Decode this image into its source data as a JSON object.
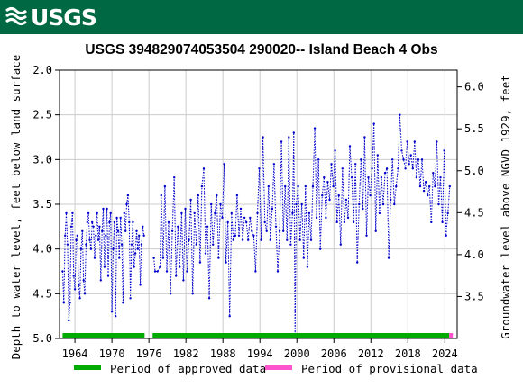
{
  "header": {
    "logo_text": "USGS",
    "bg_color": "#006843"
  },
  "chart_data": {
    "type": "line",
    "title": "USGS 394829074053504 290020-- Island Beach 4 Obs",
    "ylabel": "Depth to water level, feet below land surface",
    "y2label": "Groundwater level above NGVD 1929, feet",
    "xlim": [
      1961.5,
      2026.0
    ],
    "ylim": [
      5.0,
      2.0
    ],
    "y2lim": [
      3.0,
      6.2
    ],
    "y_inverted": true,
    "x_ticks": [
      1964,
      1970,
      1976,
      1982,
      1988,
      1994,
      2000,
      2006,
      2012,
      2018,
      2024
    ],
    "y_ticks": [
      2.0,
      2.5,
      3.0,
      3.5,
      4.0,
      4.5,
      5.0
    ],
    "y_tick_labels": [
      "2.0",
      "2.5",
      "3.0",
      "3.5",
      "4.0",
      "4.5",
      "5.0"
    ],
    "y2_ticks": [
      3.5,
      4.0,
      4.5,
      5.0,
      5.5,
      6.0
    ],
    "y2_tick_labels": [
      "3.5",
      "4.0",
      "4.5",
      "5.0",
      "5.5",
      "6.0"
    ],
    "grid": true,
    "series_color": "#0000cc",
    "approved_color": "#00aa00",
    "provisional_color": "#ff55cc",
    "series": [
      {
        "segments": [
          [
            [
              1962.0,
              4.25
            ],
            [
              1962.2,
              4.6
            ],
            [
              1962.4,
              3.85
            ],
            [
              1962.6,
              3.6
            ],
            [
              1962.8,
              3.95
            ],
            [
              1963.0,
              4.8
            ],
            [
              1963.2,
              4.6
            ],
            [
              1963.4,
              3.75
            ],
            [
              1963.6,
              3.6
            ],
            [
              1963.8,
              4.3
            ],
            [
              1964.0,
              4.45
            ],
            [
              1964.2,
              3.9
            ],
            [
              1964.4,
              3.85
            ],
            [
              1964.6,
              4.4
            ],
            [
              1964.8,
              4.55
            ],
            [
              1965.0,
              4.0
            ],
            [
              1965.2,
              3.8
            ],
            [
              1965.4,
              4.35
            ],
            [
              1965.6,
              4.5
            ],
            [
              1965.8,
              3.95
            ],
            [
              1966.0,
              3.7
            ],
            [
              1966.2,
              3.6
            ],
            [
              1966.4,
              3.9
            ],
            [
              1966.6,
              4.0
            ],
            [
              1966.8,
              3.7
            ],
            [
              1967.0,
              3.75
            ],
            [
              1967.2,
              4.1
            ],
            [
              1967.4,
              3.85
            ],
            [
              1967.6,
              3.6
            ],
            [
              1967.8,
              3.9
            ],
            [
              1968.0,
              3.75
            ],
            [
              1968.2,
              4.35
            ],
            [
              1968.4,
              3.8
            ],
            [
              1968.6,
              3.55
            ],
            [
              1968.8,
              4.2
            ],
            [
              1969.0,
              3.85
            ],
            [
              1969.2,
              3.55
            ],
            [
              1969.4,
              4.3
            ],
            [
              1969.6,
              3.7
            ],
            [
              1969.8,
              3.6
            ],
            [
              1970.0,
              4.7
            ],
            [
              1970.2,
              4.0
            ],
            [
              1970.4,
              3.7
            ],
            [
              1970.6,
              4.75
            ],
            [
              1970.8,
              3.65
            ],
            [
              1971.0,
              3.8
            ],
            [
              1971.2,
              4.1
            ],
            [
              1971.4,
              3.65
            ],
            [
              1971.6,
              3.95
            ],
            [
              1971.8,
              4.6
            ],
            [
              1972.0,
              3.6
            ],
            [
              1972.2,
              3.8
            ],
            [
              1972.4,
              3.5
            ],
            [
              1972.6,
              3.4
            ],
            [
              1972.8,
              3.7
            ],
            [
              1973.0,
              4.55
            ],
            [
              1973.2,
              3.95
            ],
            [
              1973.4,
              3.7
            ],
            [
              1973.6,
              4.2
            ],
            [
              1973.8,
              4.05
            ],
            [
              1974.0,
              3.8
            ],
            [
              1974.2,
              4.0
            ],
            [
              1974.4,
              3.85
            ],
            [
              1974.6,
              4.4
            ],
            [
              1974.8,
              3.95
            ],
            [
              1975.0,
              3.75
            ],
            [
              1975.2,
              3.85
            ]
          ],
          [
            [
              1976.8,
              4.1
            ],
            [
              1977.0,
              4.25
            ],
            [
              1977.4,
              4.25
            ],
            [
              1977.8,
              4.2
            ],
            [
              1978.0,
              3.4
            ],
            [
              1978.3,
              4.1
            ],
            [
              1978.6,
              3.3
            ],
            [
              1978.9,
              4.25
            ],
            [
              1979.2,
              3.7
            ],
            [
              1979.5,
              4.5
            ],
            [
              1979.8,
              3.8
            ],
            [
              1980.1,
              3.2
            ],
            [
              1980.4,
              4.3
            ],
            [
              1980.7,
              3.75
            ],
            [
              1981.0,
              4.2
            ],
            [
              1981.3,
              3.6
            ],
            [
              1981.6,
              4.35
            ],
            [
              1981.9,
              3.55
            ],
            [
              1982.2,
              4.25
            ],
            [
              1982.5,
              3.9
            ],
            [
              1982.8,
              3.45
            ],
            [
              1983.1,
              4.5
            ],
            [
              1983.4,
              3.6
            ],
            [
              1983.7,
              3.95
            ],
            [
              1984.0,
              3.4
            ],
            [
              1984.3,
              4.15
            ],
            [
              1984.6,
              3.3
            ],
            [
              1984.9,
              3.1
            ],
            [
              1985.2,
              4.05
            ],
            [
              1985.5,
              3.75
            ],
            [
              1985.8,
              4.55
            ],
            [
              1986.1,
              3.5
            ],
            [
              1986.4,
              3.95
            ],
            [
              1986.7,
              3.6
            ],
            [
              1987.0,
              3.4
            ],
            [
              1987.3,
              4.1
            ],
            [
              1987.6,
              3.5
            ],
            [
              1987.9,
              3.65
            ],
            [
              1988.2,
              3.05
            ],
            [
              1988.5,
              4.15
            ],
            [
              1988.8,
              3.7
            ],
            [
              1989.1,
              4.75
            ],
            [
              1989.4,
              3.6
            ],
            [
              1989.7,
              3.9
            ],
            [
              1990.0,
              3.85
            ],
            [
              1990.3,
              3.4
            ],
            [
              1990.6,
              3.85
            ],
            [
              1990.9,
              3.55
            ],
            [
              1991.2,
              3.9
            ],
            [
              1991.5,
              3.65
            ],
            [
              1991.8,
              3.7
            ],
            [
              1992.1,
              3.9
            ],
            [
              1992.4,
              3.65
            ],
            [
              1992.7,
              3.8
            ],
            [
              1993.0,
              3.85
            ],
            [
              1993.3,
              4.25
            ],
            [
              1993.6,
              3.6
            ],
            [
              1993.9,
              3.1
            ],
            [
              1994.2,
              3.9
            ],
            [
              1994.5,
              2.75
            ],
            [
              1994.8,
              3.7
            ],
            [
              1995.1,
              3.8
            ],
            [
              1995.4,
              3.3
            ],
            [
              1995.7,
              3.9
            ],
            [
              1996.0,
              3.55
            ],
            [
              1996.3,
              3.05
            ],
            [
              1996.6,
              3.75
            ],
            [
              1996.9,
              4.25
            ],
            [
              1997.2,
              3.8
            ],
            [
              1997.5,
              2.8
            ],
            [
              1997.8,
              3.8
            ],
            [
              1998.1,
              3.3
            ],
            [
              1998.4,
              3.9
            ],
            [
              1998.7,
              2.75
            ],
            [
              1999.0,
              3.95
            ],
            [
              1999.3,
              3.6
            ],
            [
              1999.5,
              2.7
            ],
            [
              1999.7,
              4.95
            ],
            [
              1999.9,
              3.5
            ],
            [
              2000.2,
              3.3
            ],
            [
              2000.5,
              3.9
            ],
            [
              2000.8,
              3.5
            ],
            [
              2001.1,
              4.1
            ],
            [
              2001.4,
              3.3
            ],
            [
              2001.7,
              4.2
            ],
            [
              2002.0,
              3.6
            ],
            [
              2002.3,
              3.9
            ],
            [
              2002.6,
              3.3
            ],
            [
              2002.9,
              2.65
            ],
            [
              2003.2,
              3.65
            ],
            [
              2003.5,
              3.0
            ],
            [
              2003.8,
              4.0
            ],
            [
              2004.1,
              3.4
            ],
            [
              2004.4,
              3.2
            ],
            [
              2004.7,
              3.65
            ],
            [
              2005.0,
              3.25
            ],
            [
              2005.3,
              3.45
            ],
            [
              2005.6,
              3.05
            ],
            [
              2005.9,
              3.3
            ],
            [
              2006.2,
              2.9
            ],
            [
              2006.5,
              3.7
            ],
            [
              2006.8,
              3.4
            ],
            [
              2007.1,
              3.95
            ],
            [
              2007.4,
              3.1
            ],
            [
              2007.7,
              3.7
            ],
            [
              2008.0,
              3.45
            ],
            [
              2008.3,
              3.65
            ],
            [
              2008.6,
              2.85
            ],
            [
              2008.9,
              3.2
            ],
            [
              2009.2,
              3.7
            ],
            [
              2009.5,
              3.05
            ],
            [
              2009.8,
              4.15
            ],
            [
              2010.1,
              3.5
            ],
            [
              2010.4,
              3.0
            ],
            [
              2010.7,
              3.55
            ],
            [
              2011.0,
              2.75
            ],
            [
              2011.3,
              3.85
            ],
            [
              2011.6,
              3.2
            ],
            [
              2011.9,
              3.4
            ],
            [
              2012.2,
              3.1
            ],
            [
              2012.5,
              2.6
            ],
            [
              2012.8,
              3.8
            ],
            [
              2013.1,
              2.95
            ],
            [
              2013.4,
              3.6
            ],
            [
              2013.7,
              3.2
            ],
            [
              2014.0,
              3.5
            ],
            [
              2014.3,
              3.15
            ],
            [
              2014.6,
              3.1
            ],
            [
              2014.9,
              4.1
            ],
            [
              2015.2,
              3.45
            ],
            [
              2015.5,
              3.0
            ],
            [
              2015.8,
              3.5
            ],
            [
              2016.1,
              3.3
            ],
            [
              2016.4,
              3.1
            ],
            [
              2016.7,
              2.5
            ],
            [
              2017.0,
              2.9
            ],
            [
              2017.3,
              3.0
            ],
            [
              2017.6,
              3.1
            ],
            [
              2017.9,
              2.8
            ],
            [
              2018.2,
              3.05
            ],
            [
              2018.5,
              2.95
            ],
            [
              2018.8,
              3.1
            ],
            [
              2019.1,
              2.8
            ],
            [
              2019.4,
              3.2
            ],
            [
              2019.7,
              3.0
            ],
            [
              2020.0,
              3.3
            ],
            [
              2020.3,
              3.0
            ],
            [
              2020.6,
              3.35
            ],
            [
              2020.9,
              3.25
            ],
            [
              2021.2,
              3.4
            ],
            [
              2021.5,
              3.3
            ],
            [
              2021.8,
              3.7
            ],
            [
              2022.1,
              3.15
            ],
            [
              2022.4,
              3.3
            ],
            [
              2022.7,
              2.8
            ],
            [
              2023.0,
              3.5
            ],
            [
              2023.3,
              3.2
            ],
            [
              2023.6,
              3.7
            ],
            [
              2023.9,
              2.9
            ],
            [
              2024.2,
              3.85
            ],
            [
              2024.5,
              3.6
            ],
            [
              2024.8,
              3.3
            ]
          ]
        ]
      }
    ],
    "approved_periods": [
      [
        1962.0,
        1975.3
      ],
      [
        1976.6,
        2024.7
      ]
    ],
    "provisional_periods": [
      [
        2024.7,
        2025.3
      ]
    ],
    "legend": [
      {
        "label": "Period of approved data",
        "color": "#00aa00"
      },
      {
        "label": "Period of provisional data",
        "color": "#ff55cc"
      }
    ],
    "legend_position": "bottom"
  }
}
